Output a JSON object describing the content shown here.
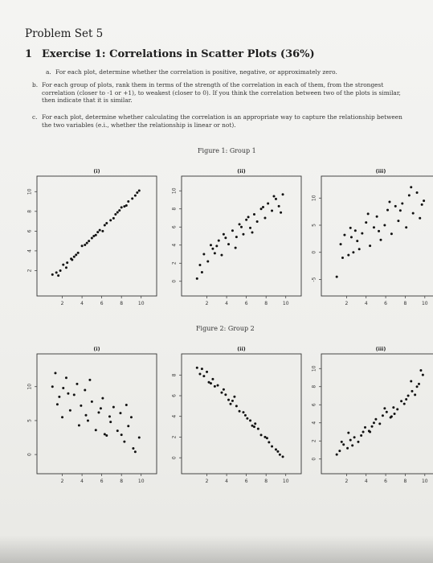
{
  "title": "Problem Set 5",
  "section": {
    "number": "1",
    "title": "Exercise 1: Correlations in Scatter Plots (36%)"
  },
  "items": [
    {
      "label": "a.",
      "lines": [
        "For each plot, determine whether the correlation is positive, negative, or approximately zero."
      ]
    },
    {
      "label": "b.",
      "lines": [
        "For each group of plots, rank them in terms of the strength of the correlation in each of them, from the strongest",
        "correlation (closer to -1 or +1), to weakest (closer to 0). If you think the correlation between two of the plots is similar,",
        "then indicate that it is similar."
      ]
    },
    {
      "label": "c.",
      "lines": [
        "For each plot, determine whether calculating the correlation is an appropriate way to capture the relationship between",
        "the two variables (e.i., whether the relationship is linear or not)."
      ]
    }
  ],
  "figure1": {
    "title": "Figure 1: Group 1"
  },
  "figure2": {
    "title": "Figure 2: Group 2"
  },
  "chart_data": [
    {
      "type": "scatter",
      "label": "(i)",
      "x_ticks": [
        "2",
        "4",
        "6",
        "8",
        "10"
      ],
      "y_ticks": [
        "2",
        "4",
        "6",
        "8",
        "10"
      ],
      "xlim": [
        0,
        11
      ],
      "ylim": [
        0,
        11
      ],
      "x": [
        1.0,
        1.4,
        1.8,
        2.1,
        2.5,
        2.9,
        3.2,
        3.6,
        4.0,
        4.3,
        4.7,
        5.0,
        5.4,
        5.8,
        6.1,
        6.5,
        6.9,
        7.2,
        7.6,
        8.0,
        8.3,
        8.7,
        9.1,
        9.4,
        9.8,
        1.6,
        2.4,
        3.4,
        4.5,
        5.6,
        6.3,
        7.4,
        8.5,
        9.6,
        3.0,
        5.2,
        7.8
      ],
      "y": [
        1.6,
        1.8,
        2.0,
        2.6,
        2.8,
        3.2,
        3.4,
        3.8,
        4.5,
        4.6,
        5.0,
        5.3,
        5.6,
        6.1,
        6.0,
        6.8,
        7.1,
        7.3,
        7.9,
        8.4,
        8.5,
        9.0,
        9.3,
        9.6,
        10.1,
        1.5,
        2.3,
        3.6,
        4.8,
        5.9,
        6.6,
        7.7,
        8.6,
        9.9,
        3.1,
        5.5,
        8.1
      ]
    },
    {
      "type": "scatter",
      "label": "(ii)",
      "x_ticks": [
        "2",
        "4",
        "6",
        "8",
        "10"
      ],
      "y_ticks": [
        "0",
        "2",
        "4",
        "6",
        "8",
        "10"
      ],
      "xlim": [
        0,
        11
      ],
      "ylim": [
        -1,
        11
      ],
      "x": [
        1.0,
        1.3,
        1.7,
        2.1,
        2.4,
        2.8,
        3.2,
        3.5,
        3.9,
        4.2,
        4.6,
        5.0,
        5.3,
        5.7,
        6.0,
        6.4,
        6.8,
        7.1,
        7.5,
        7.9,
        8.2,
        8.6,
        9.0,
        9.3,
        9.7,
        1.5,
        2.6,
        3.7,
        4.9,
        5.5,
        6.6,
        7.7,
        8.8,
        9.5,
        3.0,
        6.2
      ],
      "y": [
        0.3,
        1.8,
        3.0,
        2.2,
        4.0,
        3.1,
        4.5,
        2.9,
        4.8,
        4.1,
        5.6,
        4.9,
        6.3,
        5.2,
        6.8,
        5.9,
        7.4,
        6.6,
        8.0,
        7.0,
        8.6,
        7.8,
        9.1,
        8.3,
        9.6,
        1.0,
        3.6,
        5.2,
        3.7,
        6.0,
        5.4,
        8.2,
        9.4,
        7.6,
        3.9,
        7.1
      ]
    },
    {
      "type": "scatter",
      "label": "(iii)",
      "x_ticks": [
        "2",
        "4",
        "6",
        "8",
        "10"
      ],
      "y_ticks": [
        "-5",
        "0",
        "5",
        "10"
      ],
      "xlim": [
        0,
        11
      ],
      "ylim": [
        -7,
        13
      ],
      "x": [
        1.0,
        1.4,
        1.8,
        2.2,
        2.5,
        2.9,
        3.3,
        3.6,
        4.0,
        4.4,
        4.8,
        5.1,
        5.5,
        5.9,
        6.2,
        6.6,
        7.0,
        7.3,
        7.7,
        8.1,
        8.4,
        8.8,
        9.2,
        9.5,
        9.9,
        1.6,
        2.4,
        3.1,
        4.2,
        5.3,
        6.4,
        7.5,
        8.6,
        9.7,
        2.7
      ],
      "y": [
        -4.5,
        1.5,
        3.2,
        -0.5,
        2.8,
        4.0,
        0.6,
        3.5,
        5.5,
        1.2,
        4.6,
        6.6,
        2.3,
        5.0,
        7.8,
        3.4,
        8.5,
        5.8,
        9.0,
        4.6,
        10.5,
        7.2,
        11.0,
        6.3,
        9.5,
        -1.0,
        4.5,
        2.1,
        7.1,
        3.9,
        9.3,
        7.7,
        12.0,
        8.8,
        0.0
      ]
    },
    {
      "type": "scatter",
      "label": "(i)",
      "x_ticks": [
        "2",
        "4",
        "6",
        "8",
        "10"
      ],
      "y_ticks": [
        "0",
        "5",
        "10"
      ],
      "xlim": [
        0,
        11
      ],
      "ylim": [
        -2,
        14
      ],
      "x": [
        1.0,
        1.3,
        1.7,
        2.1,
        2.4,
        2.8,
        3.2,
        3.5,
        3.9,
        4.3,
        4.6,
        5.0,
        5.4,
        5.7,
        6.1,
        6.5,
        6.8,
        7.2,
        7.6,
        7.9,
        8.3,
        8.7,
        9.0,
        9.4,
        9.8,
        1.5,
        2.6,
        3.7,
        4.8,
        5.9,
        6.9,
        8.0,
        9.2,
        2.0,
        4.4,
        6.3,
        8.5
      ],
      "y": [
        10.0,
        12.0,
        8.5,
        9.8,
        11.3,
        6.5,
        8.8,
        10.4,
        7.2,
        9.5,
        5.0,
        7.8,
        3.6,
        6.2,
        8.3,
        2.8,
        5.6,
        7.0,
        3.5,
        6.1,
        1.9,
        4.2,
        5.5,
        0.4,
        2.5,
        7.4,
        9.0,
        4.3,
        11.0,
        6.8,
        4.8,
        2.9,
        0.9,
        5.5,
        5.8,
        3.0,
        7.3
      ]
    },
    {
      "type": "scatter",
      "label": "(ii)",
      "x_ticks": [
        "2",
        "4",
        "6",
        "8",
        "10"
      ],
      "y_ticks": [
        "0",
        "2",
        "4",
        "6",
        "8"
      ],
      "xlim": [
        0,
        11
      ],
      "ylim": [
        -1,
        9.5
      ],
      "x": [
        1.0,
        1.3,
        1.7,
        2.0,
        2.4,
        2.8,
        3.1,
        3.5,
        3.9,
        4.2,
        4.6,
        5.0,
        5.3,
        5.7,
        6.1,
        6.4,
        6.8,
        7.2,
        7.5,
        7.9,
        8.3,
        8.6,
        9.0,
        9.4,
        9.7,
        1.5,
        2.6,
        3.7,
        4.8,
        5.9,
        6.9,
        8.1,
        9.2,
        2.2,
        4.4,
        6.6
      ],
      "y": [
        8.7,
        8.1,
        7.9,
        8.3,
        7.2,
        6.9,
        7.0,
        6.3,
        6.1,
        5.6,
        5.5,
        5.0,
        4.5,
        4.4,
        3.8,
        3.6,
        3.0,
        2.8,
        2.2,
        2.0,
        1.5,
        1.1,
        0.8,
        0.3,
        0.1,
        8.6,
        7.6,
        6.6,
        5.9,
        4.1,
        3.3,
        1.9,
        0.6,
        7.3,
        5.2,
        3.1
      ]
    },
    {
      "type": "scatter",
      "label": "(iii)",
      "x_ticks": [
        "2",
        "4",
        "6",
        "8",
        "10"
      ],
      "y_ticks": [
        "0",
        "2",
        "4",
        "6",
        "8",
        "10"
      ],
      "xlim": [
        0,
        11
      ],
      "ylim": [
        -1,
        11
      ],
      "x": [
        1.0,
        1.3,
        1.7,
        2.1,
        2.4,
        2.8,
        3.2,
        3.5,
        3.9,
        4.3,
        4.6,
        5.0,
        5.4,
        5.7,
        6.1,
        6.5,
        6.8,
        7.2,
        7.6,
        7.9,
        8.3,
        8.7,
        9.0,
        9.4,
        9.8,
        1.5,
        2.6,
        3.7,
        4.8,
        5.9,
        6.9,
        8.1,
        9.2,
        2.2,
        4.4,
        6.6,
        8.6,
        9.6
      ],
      "y": [
        0.5,
        0.9,
        1.6,
        1.2,
        2.1,
        2.4,
        1.9,
        2.6,
        3.5,
        3.1,
        3.6,
        4.4,
        3.9,
        4.8,
        5.2,
        4.6,
        5.7,
        5.5,
        6.4,
        6.1,
        7.0,
        7.5,
        7.1,
        8.3,
        9.3,
        1.9,
        1.5,
        3.0,
        4.0,
        5.6,
        5.0,
        6.6,
        8.0,
        2.9,
        3.0,
        4.7,
        8.6,
        9.8
      ]
    }
  ]
}
